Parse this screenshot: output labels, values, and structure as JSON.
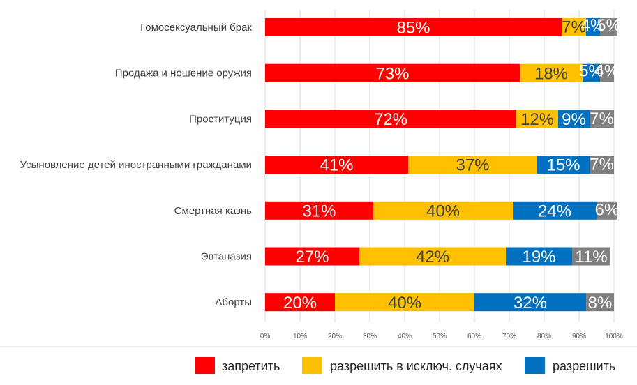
{
  "chart_data": {
    "type": "bar",
    "orientation": "horizontal",
    "stacked": true,
    "categories": [
      "Гомосексуальный брак",
      "Продажа и ношение оружия",
      "Проституция",
      "Усыновление детей иностранными гражданами",
      "Смертная казнь",
      "Эвтаназия",
      "Аборты"
    ],
    "series": [
      {
        "name": "запретить",
        "color": "#FF0000",
        "label_color": "#ffffff",
        "values": [
          85,
          73,
          72,
          41,
          31,
          27,
          20
        ]
      },
      {
        "name": "разрешить в исключ. случаях",
        "color": "#FFC000",
        "label_color": "#404040",
        "values": [
          7,
          18,
          12,
          37,
          40,
          42,
          40
        ]
      },
      {
        "name": "разрешить",
        "color": "#0070C0",
        "label_color": "#ffffff",
        "values": [
          4,
          5,
          9,
          15,
          24,
          19,
          32
        ]
      },
      {
        "name": "",
        "color": "#7F7F7F",
        "label_color": "#ffffff",
        "values": [
          5,
          4,
          7,
          7,
          6,
          11,
          8
        ]
      }
    ],
    "xlim": [
      0,
      100
    ],
    "xticks": [
      "0%",
      "10%",
      "20%",
      "30%",
      "40%",
      "50%",
      "60%",
      "70%",
      "80%",
      "90%",
      "100%"
    ],
    "grid": true,
    "legend_position": "bottom-right",
    "title": "",
    "xlabel": "",
    "ylabel": ""
  }
}
